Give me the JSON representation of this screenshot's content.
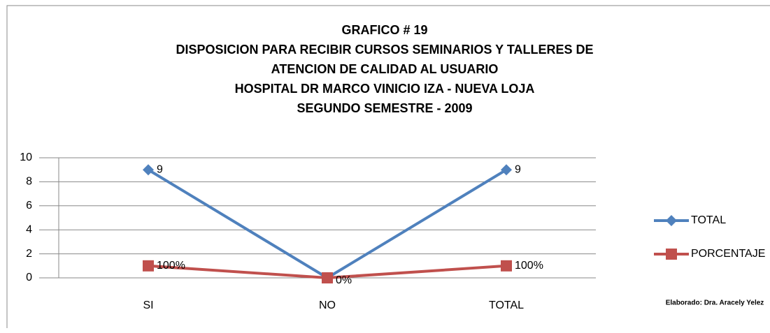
{
  "chart_data": {
    "type": "line",
    "title": [
      "GRAFICO # 19",
      "DISPOSICION PARA RECIBIR CURSOS SEMINARIOS Y TALLERES DE",
      "ATENCION DE CALIDAD AL USUARIO",
      "HOSPITAL DR MARCO VINICIO IZA - NUEVA LOJA",
      "SEGUNDO SEMESTRE - 2009"
    ],
    "categories": [
      "SI",
      "NO",
      "TOTAL"
    ],
    "series": [
      {
        "name": "TOTAL",
        "color": "#4f81bd",
        "marker": "diamond",
        "values": [
          9,
          0,
          9
        ],
        "value_labels": [
          "9",
          null,
          "9"
        ]
      },
      {
        "name": "PORCENTAJE",
        "color": "#c0504d",
        "marker": "square",
        "values": [
          1,
          0,
          1
        ],
        "value_labels": [
          "100%",
          "0%",
          "100%"
        ]
      }
    ],
    "ylim": [
      0,
      10
    ],
    "yticks": [
      0,
      2,
      4,
      6,
      8,
      10
    ],
    "grid": true,
    "legend": "right",
    "note": "Elaborado: Dra. Aracely Yelez"
  }
}
